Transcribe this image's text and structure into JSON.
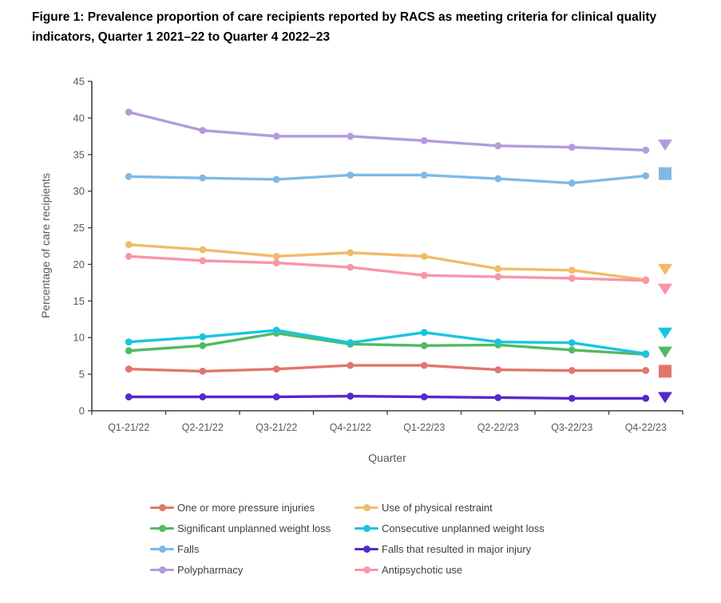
{
  "chart_data": {
    "type": "line",
    "title": "Figure 1: Prevalence proportion of care recipients reported by RACS as meeting criteria for clinical quality indicators, Quarter 1 2021–22 to Quarter 4 2022–23",
    "xlabel": "Quarter",
    "ylabel": "Percentage of care recipients",
    "ylim": [
      0,
      45
    ],
    "ytick_step": 5,
    "grid": false,
    "legend_position": "bottom",
    "categories": [
      "Q1-21/22",
      "Q2-21/22",
      "Q3-21/22",
      "Q4-21/22",
      "Q1-22/23",
      "Q2-22/23",
      "Q3-22/23",
      "Q4-22/23"
    ],
    "series": [
      {
        "name": "One or more pressure injuries",
        "color": "#E1766A",
        "values": [
          5.7,
          5.4,
          5.7,
          6.2,
          6.2,
          5.6,
          5.5,
          5.5
        ],
        "end_marker": {
          "shape": "square",
          "value": 5.4
        }
      },
      {
        "name": "Use of physical restraint",
        "color": "#F1BC68",
        "values": [
          22.7,
          22.0,
          21.1,
          21.6,
          21.1,
          19.4,
          19.2,
          17.9
        ],
        "end_marker": {
          "shape": "triangle-down",
          "value": 19.3
        }
      },
      {
        "name": "Significant unplanned weight loss",
        "color": "#53B963",
        "values": [
          8.2,
          8.9,
          10.6,
          9.1,
          8.9,
          9.0,
          8.3,
          7.7
        ],
        "end_marker": {
          "shape": "triangle-down",
          "value": 8.0
        }
      },
      {
        "name": "Consecutive unplanned weight loss",
        "color": "#18C5DE",
        "values": [
          9.4,
          10.1,
          11.0,
          9.3,
          10.7,
          9.4,
          9.3,
          7.8
        ],
        "end_marker": {
          "shape": "triangle-down",
          "value": 10.6
        }
      },
      {
        "name": "Falls",
        "color": "#7FB9E4",
        "values": [
          32.0,
          31.8,
          31.6,
          32.2,
          32.2,
          31.7,
          31.1,
          32.1
        ],
        "end_marker": {
          "shape": "square",
          "value": 32.4
        }
      },
      {
        "name": "Falls that resulted in major injury",
        "color": "#5629C8",
        "values": [
          1.9,
          1.9,
          1.9,
          2.0,
          1.9,
          1.8,
          1.7,
          1.7
        ],
        "end_marker": {
          "shape": "triangle-down",
          "value": 1.8
        }
      },
      {
        "name": "Polypharmacy",
        "color": "#B39CDC",
        "values": [
          40.8,
          38.3,
          37.5,
          37.5,
          36.9,
          36.2,
          36.0,
          35.6
        ],
        "end_marker": {
          "shape": "triangle-down",
          "value": 36.3
        }
      },
      {
        "name": "Antipsychotic use",
        "color": "#F995A8",
        "values": [
          21.1,
          20.5,
          20.2,
          19.6,
          18.5,
          18.3,
          18.1,
          17.8
        ],
        "end_marker": {
          "shape": "triangle-down",
          "value": 16.6
        }
      }
    ]
  }
}
